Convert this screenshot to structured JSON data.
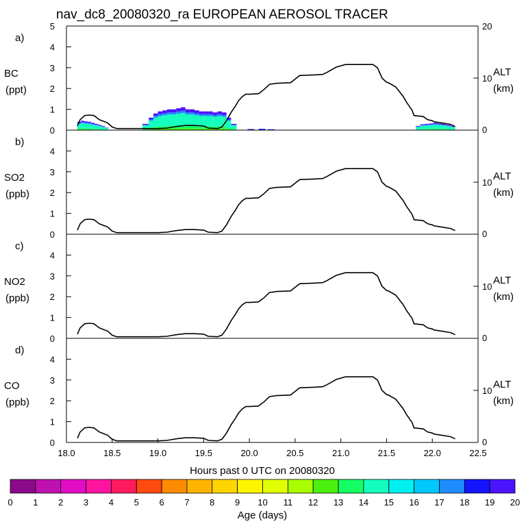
{
  "title": "nav_dc8_20080320_ra EUROPEAN AEROSOL TRACER",
  "x_axis": {
    "label": "Hours past 0 UTC on 20080320",
    "range": [
      18.0,
      22.5
    ],
    "ticks": [
      "18.0",
      "18.5",
      "19.0",
      "19.5",
      "20.0",
      "20.5",
      "21.0",
      "21.5",
      "22.0",
      "22.5"
    ]
  },
  "right_axis": {
    "label": "ALT",
    "units": "(km)",
    "range": [
      0,
      20
    ],
    "top_label": "20",
    "mid_label": "10",
    "zero_label": "0"
  },
  "panels": [
    {
      "letter": "a)",
      "species": "BC",
      "units": "(ppt)",
      "y_ticks": [
        "5",
        "4",
        "3",
        "2",
        "1",
        "0"
      ]
    },
    {
      "letter": "b)",
      "species": "SO2",
      "units": "(ppb)",
      "y_ticks": [
        "4",
        "3",
        "2",
        "1",
        "0"
      ]
    },
    {
      "letter": "c)",
      "species": "NO2",
      "units": "(ppb)",
      "y_ticks": [
        "4",
        "3",
        "2",
        "1",
        "0"
      ]
    },
    {
      "letter": "d)",
      "species": "CO",
      "units": "(ppb)",
      "y_ticks": [
        "4",
        "3",
        "2",
        "1",
        "0"
      ]
    }
  ],
  "colorbar": {
    "label": "Age (days)",
    "tick_labels": [
      "0",
      "1",
      "2",
      "3",
      "4",
      "5",
      "6",
      "7",
      "8",
      "9",
      "10",
      "11",
      "12",
      "13",
      "14",
      "15",
      "16",
      "17",
      "18",
      "19",
      "20"
    ],
    "colors": [
      "#8b0a8b",
      "#bf10b0",
      "#e30cc6",
      "#ff14a0",
      "#ff1a5e",
      "#ff4a10",
      "#ff8c00",
      "#ffb400",
      "#ffd500",
      "#fff400",
      "#e1ff00",
      "#aaff00",
      "#4cf010",
      "#14ff64",
      "#14ffbe",
      "#00f0f0",
      "#00c8ff",
      "#1e8cff",
      "#1414ff",
      "#4b14ff"
    ]
  },
  "chart_data": {
    "type": "line",
    "x_label": "Hours past 0 UTC on 20080320",
    "xlim": [
      18.0,
      22.5
    ],
    "altitude_series": {
      "name": "ALT (km)",
      "ylim": [
        0,
        20
      ],
      "x": [
        18.12,
        18.15,
        18.2,
        18.25,
        18.3,
        18.33,
        18.36,
        18.45,
        18.5,
        18.55,
        19.0,
        19.1,
        19.2,
        19.3,
        19.4,
        19.5,
        19.55,
        19.65,
        19.7,
        19.75,
        19.8,
        19.85,
        19.88,
        19.92,
        19.96,
        20.0,
        20.1,
        20.16,
        20.22,
        20.3,
        20.45,
        20.5,
        20.55,
        20.7,
        20.8,
        20.85,
        20.95,
        21.05,
        21.3,
        21.35,
        21.4,
        21.45,
        21.5,
        21.52,
        21.6,
        21.68,
        21.72,
        21.78,
        21.8,
        21.9,
        21.95,
        22.0,
        22.02,
        22.1,
        22.2,
        22.25
      ],
      "y": [
        0.8,
        2.0,
        2.8,
        2.9,
        2.8,
        2.4,
        2.0,
        1.4,
        0.6,
        0.3,
        0.3,
        0.4,
        0.7,
        0.9,
        0.9,
        0.8,
        0.4,
        0.3,
        0.6,
        1.8,
        3.4,
        4.7,
        5.6,
        6.4,
        6.9,
        6.9,
        7.0,
        7.8,
        8.8,
        9.0,
        9.1,
        9.8,
        10.5,
        10.6,
        10.7,
        11.1,
        12.1,
        12.6,
        12.6,
        12.6,
        12.0,
        10.0,
        9.2,
        9.1,
        8.3,
        6.5,
        5.3,
        3.8,
        2.8,
        2.6,
        2.0,
        1.8,
        1.6,
        1.4,
        1.1,
        0.7
      ]
    },
    "bc_tracer": {
      "name": "BC (ppt) stacked by age",
      "ylim": [
        0,
        5
      ],
      "segment1": {
        "x_range": [
          18.12,
          18.46
        ],
        "total": [
          0.4,
          0.45,
          0.42,
          0.4,
          0.35,
          0.3,
          0.25,
          0.2,
          0.12
        ]
      },
      "segment2": {
        "x": [
          18.83,
          18.9,
          18.95,
          19.0,
          19.05,
          19.1,
          19.15,
          19.2,
          19.25,
          19.3,
          19.35,
          19.4,
          19.45,
          19.5,
          19.55,
          19.6,
          19.65,
          19.7,
          19.75
        ],
        "total": [
          0.3,
          0.6,
          0.8,
          0.9,
          0.95,
          1.0,
          1.0,
          1.05,
          1.1,
          1.0,
          1.0,
          0.95,
          0.9,
          0.9,
          0.9,
          0.85,
          0.9,
          0.85,
          0.9
        ]
      },
      "segment2_tail": {
        "x": [
          19.75,
          19.8,
          19.86
        ],
        "total": [
          0.6,
          0.3,
          0.1
        ]
      },
      "segment3": {
        "x_range": [
          21.82,
          22.25
        ],
        "total": [
          0.2,
          0.28,
          0.3,
          0.32,
          0.35,
          0.32,
          0.3,
          0.25,
          0.2
        ]
      },
      "dominant_age_days": [
        12,
        20
      ]
    },
    "so2_tracer": {
      "name": "SO2 (ppb)",
      "ylim": [
        0,
        5
      ],
      "values": "not visible"
    },
    "no2_tracer": {
      "name": "NO2 (ppb)",
      "ylim": [
        0,
        5
      ],
      "values": "not visible"
    },
    "co_tracer": {
      "name": "CO (ppb)",
      "ylim": [
        0,
        5
      ],
      "values": "not visible"
    }
  }
}
